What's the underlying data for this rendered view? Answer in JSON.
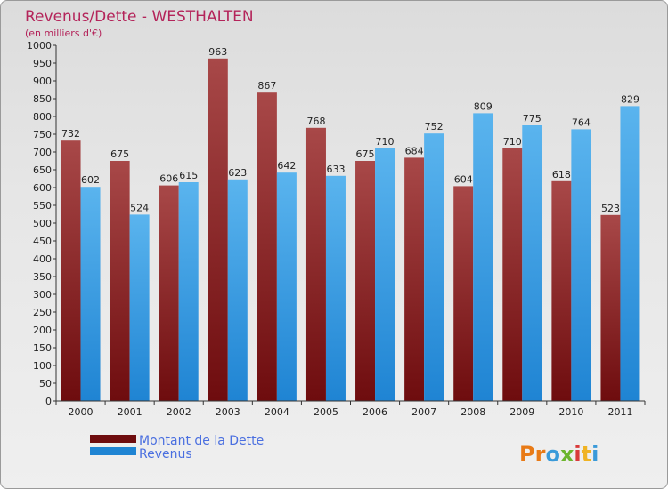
{
  "colors": {
    "dette": "#6e0c0e",
    "dette_light": "#a84848",
    "revenus": "#1f84d3",
    "revenus_light": "#5ab4ee",
    "title": "#b4245a",
    "legend_text": "#4a6fe0"
  },
  "logo": {
    "letters": [
      "P",
      "r",
      "o",
      "x",
      "i",
      "t",
      "i"
    ],
    "colors": [
      "#e87a16",
      "#e87a16",
      "#3a9ad9",
      "#6cb52d",
      "#d93a3a",
      "#f0b323",
      "#3a9ad9"
    ]
  },
  "chart_data": {
    "type": "bar",
    "title": "Revenus/Dette - WESTHALTEN",
    "subtitle": "(en milliers d'€)",
    "categories": [
      "2000",
      "2001",
      "2002",
      "2003",
      "2004",
      "2005",
      "2006",
      "2007",
      "2008",
      "2009",
      "2010",
      "2011"
    ],
    "series": [
      {
        "name": "Montant de la Dette",
        "values": [
          732,
          675,
          606,
          963,
          867,
          768,
          675,
          684,
          604,
          710,
          618,
          523
        ]
      },
      {
        "name": "Revenus",
        "values": [
          602,
          524,
          615,
          623,
          642,
          633,
          710,
          752,
          809,
          775,
          764,
          829
        ]
      }
    ],
    "ylim": [
      0,
      1000
    ],
    "ytick_step": 50,
    "grid": false,
    "legend_position": "bottom-left"
  }
}
